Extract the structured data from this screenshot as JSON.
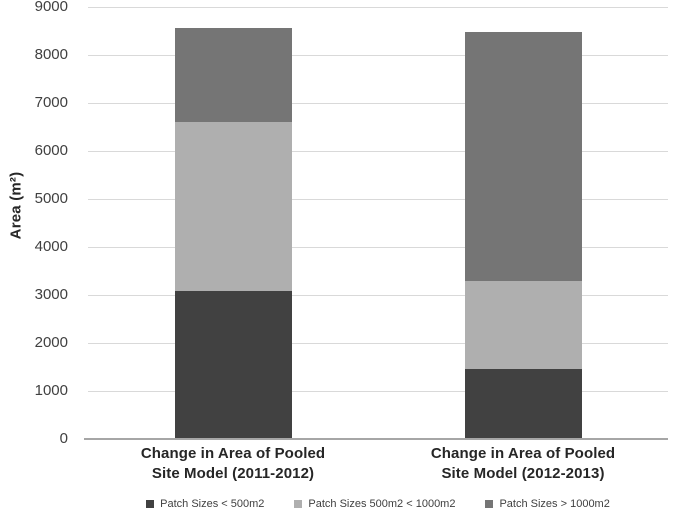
{
  "chart_data": {
    "type": "bar",
    "stacked": true,
    "title": "",
    "ylabel": "Area (m²)",
    "xlabel": "",
    "ylim": [
      0,
      9000
    ],
    "yticks": [
      0,
      1000,
      2000,
      3000,
      4000,
      5000,
      6000,
      7000,
      8000,
      9000
    ],
    "grid": true,
    "legend_position": "bottom",
    "categories": [
      "Change in Area of Pooled\nSite Model (2011-2012)",
      "Change in Area of Pooled\nSite Model (2012-2013)"
    ],
    "series": [
      {
        "name": "Patch Sizes < 500m2",
        "color": "#414141",
        "values": [
          3060,
          1440
        ]
      },
      {
        "name": "Patch Sizes 500m2 < 1000m2",
        "color": "#afafaf",
        "values": [
          3520,
          1840
        ]
      },
      {
        "name": "Patch Sizes > 1000m2",
        "color": "#757575",
        "values": [
          1960,
          5180
        ]
      }
    ]
  },
  "style": {
    "background": "#ffffff",
    "gridline_color": "#d9d9d9",
    "axis_line_color": "#a6a6a6",
    "tick_label_color": "#404040",
    "category_label_color": "#262626",
    "legend_text_color": "#404040"
  }
}
